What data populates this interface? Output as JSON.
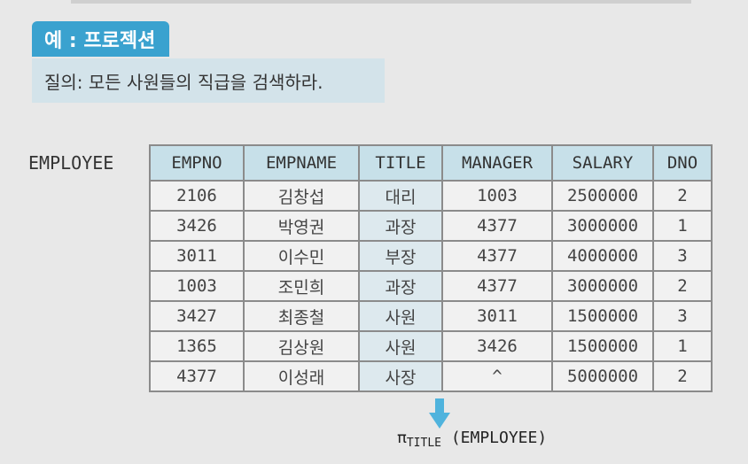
{
  "header": {
    "badge_label": "예 : 프로젝션",
    "query_text": "질의: 모든 사원들의 직급을 검색하라."
  },
  "relation": {
    "name": "EMPLOYEE",
    "columns": [
      "EMPNO",
      "EMPNAME",
      "TITLE",
      "MANAGER",
      "SALARY",
      "DNO"
    ],
    "rows": [
      [
        "2106",
        "김창섭",
        "대리",
        "1003",
        "2500000",
        "2"
      ],
      [
        "3426",
        "박영권",
        "과장",
        "4377",
        "3000000",
        "1"
      ],
      [
        "3011",
        "이수민",
        "부장",
        "4377",
        "4000000",
        "3"
      ],
      [
        "1003",
        "조민희",
        "과장",
        "4377",
        "3000000",
        "2"
      ],
      [
        "3427",
        "최종철",
        "사원",
        "3011",
        "1500000",
        "3"
      ],
      [
        "1365",
        "김상원",
        "사원",
        "3426",
        "1500000",
        "1"
      ],
      [
        "4377",
        "이성래",
        "사장",
        "^",
        "5000000",
        "2"
      ]
    ]
  },
  "expression": {
    "operator": "π",
    "attribute": "TITLE",
    "relation": "(EMPLOYEE)"
  },
  "colors": {
    "badge": "#3aa2cf",
    "query_bg": "#d3e3ea",
    "header_bg": "#c7e0e9",
    "arrow": "#4fb3dd"
  }
}
